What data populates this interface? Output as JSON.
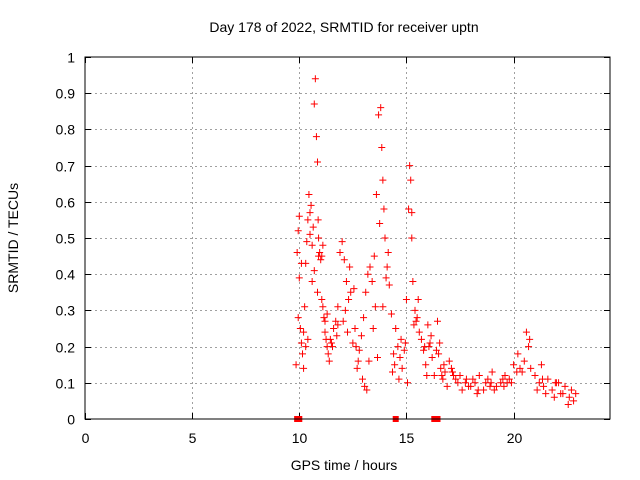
{
  "chart_data": {
    "type": "scatter",
    "title": "Day 178 of 2022, SRMTID for receiver uptn",
    "xlabel": "GPS time / hours",
    "ylabel": "SRMTID / TECUs",
    "xlim": [
      0,
      24.5
    ],
    "ylim": [
      0,
      1
    ],
    "xticks": [
      0,
      5,
      10,
      15,
      20
    ],
    "xtick_labels": [
      "0",
      "5",
      "10",
      "15",
      "20"
    ],
    "yticks": [
      0,
      0.1,
      0.2,
      0.3,
      0.4,
      0.5,
      0.6,
      0.7,
      0.8,
      0.9,
      1
    ],
    "ytick_labels": [
      "0",
      "0.1",
      "0.2",
      "0.3",
      "0.4",
      "0.5",
      "0.6",
      "0.7",
      "0.8",
      "0.9",
      "1"
    ],
    "grid": true,
    "marker": "+",
    "color": "#ff0000",
    "series": [
      {
        "name": "SRMTID",
        "x": [
          9.85,
          9.9,
          9.95,
          10.0,
          10.05,
          10.1,
          10.15,
          10.2,
          10.25,
          10.3,
          10.35,
          10.4,
          10.45,
          10.5,
          10.55,
          10.6,
          10.65,
          10.7,
          10.75,
          10.8,
          10.85,
          10.88,
          10.9,
          10.95,
          11.0,
          11.05,
          11.1,
          11.15,
          11.2,
          11.25,
          11.3,
          11.35,
          11.4,
          11.5,
          11.6,
          11.7,
          11.8,
          11.9,
          12.0,
          12.1,
          12.2,
          12.3,
          12.4,
          12.5,
          12.6,
          12.7,
          12.8,
          12.9,
          13.0,
          13.1,
          13.2,
          13.3,
          13.4,
          13.5,
          13.6,
          13.7,
          13.8,
          13.85,
          13.9,
          13.95,
          14.0,
          14.1,
          14.2,
          14.3,
          14.4,
          14.5,
          14.6,
          14.7,
          14.8,
          14.9,
          15.0,
          15.1,
          15.15,
          15.2,
          15.25,
          15.3,
          15.4,
          15.5,
          15.6,
          15.7,
          15.8,
          15.9,
          16.0,
          16.1,
          16.2,
          16.3,
          16.4,
          16.5,
          16.6,
          16.7,
          16.8,
          16.9,
          17.0,
          17.2,
          17.4,
          17.6,
          17.8,
          18.0,
          18.2,
          18.4,
          18.6,
          18.8,
          19.0,
          19.2,
          19.4,
          19.6,
          19.8,
          20.0,
          20.2,
          20.4,
          20.6,
          20.8,
          21.0,
          21.2,
          21.4,
          21.6,
          21.8,
          22.0,
          22.2,
          22.4,
          22.6,
          22.8,
          10.1,
          10.3,
          10.6,
          10.85,
          11.05,
          11.2,
          11.45,
          11.75,
          12.05,
          12.35,
          12.65,
          12.95,
          13.25,
          13.55,
          13.75,
          14.05,
          14.35,
          14.65,
          14.95,
          15.25,
          15.55,
          15.85,
          16.15,
          16.45,
          16.75,
          17.1,
          17.5,
          17.9,
          18.3,
          18.7,
          19.1,
          19.5,
          19.9,
          20.3,
          20.7,
          21.1,
          21.5,
          21.9,
          22.3,
          22.7,
          10.0,
          10.5,
          10.9,
          11.3,
          11.8,
          12.25,
          12.75,
          13.15,
          13.65,
          14.15,
          14.75,
          15.35,
          15.95,
          16.55,
          17.15,
          17.75,
          18.35,
          18.95,
          19.55,
          20.15,
          20.75,
          21.35,
          21.95,
          22.55,
          9.95,
          10.2,
          10.4,
          10.7,
          11.1,
          11.55,
          12.15,
          12.55,
          13.05,
          13.45,
          13.9,
          14.45,
          15.05,
          15.45,
          16.05,
          16.65,
          17.3,
          18.1,
          18.9,
          19.7,
          20.5,
          21.3,
          22.1,
          22.9,
          9.9,
          10.0,
          14.5,
          16.3,
          16.45
        ],
        "y": [
          0.15,
          0.46,
          0.52,
          0.39,
          0.25,
          0.21,
          0.18,
          0.24,
          0.31,
          0.43,
          0.49,
          0.55,
          0.62,
          0.57,
          0.59,
          0.48,
          0.53,
          0.87,
          0.94,
          0.78,
          0.71,
          0.55,
          0.5,
          0.46,
          0.44,
          0.33,
          0.31,
          0.28,
          0.24,
          0.22,
          0.2,
          0.18,
          0.16,
          0.21,
          0.25,
          0.27,
          0.31,
          0.46,
          0.49,
          0.44,
          0.38,
          0.33,
          0.35,
          0.21,
          0.25,
          0.14,
          0.19,
          0.23,
          0.28,
          0.35,
          0.4,
          0.42,
          0.38,
          0.45,
          0.62,
          0.84,
          0.86,
          0.75,
          0.66,
          0.58,
          0.5,
          0.42,
          0.37,
          0.29,
          0.18,
          0.25,
          0.2,
          0.17,
          0.14,
          0.19,
          0.33,
          0.58,
          0.7,
          0.66,
          0.5,
          0.38,
          0.3,
          0.28,
          0.24,
          0.22,
          0.19,
          0.15,
          0.26,
          0.21,
          0.17,
          0.12,
          0.19,
          0.18,
          0.14,
          0.11,
          0.13,
          0.09,
          0.16,
          0.12,
          0.1,
          0.08,
          0.11,
          0.09,
          0.1,
          0.12,
          0.08,
          0.11,
          0.13,
          0.09,
          0.1,
          0.12,
          0.11,
          0.15,
          0.18,
          0.13,
          0.24,
          0.14,
          0.12,
          0.1,
          0.09,
          0.11,
          0.08,
          0.1,
          0.07,
          0.09,
          0.06,
          0.05,
          0.43,
          0.2,
          0.38,
          0.35,
          0.45,
          0.27,
          0.22,
          0.23,
          0.27,
          0.42,
          0.2,
          0.11,
          0.16,
          0.31,
          0.54,
          0.39,
          0.13,
          0.11,
          0.21,
          0.57,
          0.33,
          0.2,
          0.23,
          0.27,
          0.15,
          0.14,
          0.12,
          0.09,
          0.07,
          0.1,
          0.08,
          0.11,
          0.1,
          0.14,
          0.2,
          0.08,
          0.07,
          0.06,
          0.07,
          0.08,
          0.56,
          0.51,
          0.45,
          0.29,
          0.26,
          0.24,
          0.16,
          0.08,
          0.17,
          0.46,
          0.22,
          0.26,
          0.12,
          0.21,
          0.13,
          0.1,
          0.08,
          0.1,
          0.09,
          0.13,
          0.22,
          0.11,
          0.1,
          0.04,
          0.28,
          0.14,
          0.22,
          0.41,
          0.48,
          0.2,
          0.3,
          0.36,
          0.09,
          0.25,
          0.31,
          0.15,
          0.1,
          0.27,
          0.2,
          0.12,
          0.11,
          0.11,
          0.09,
          0.1,
          0.16,
          0.15,
          0.1,
          0.07,
          0.0,
          0.0,
          0.0,
          0.0,
          0.0
        ]
      }
    ]
  }
}
